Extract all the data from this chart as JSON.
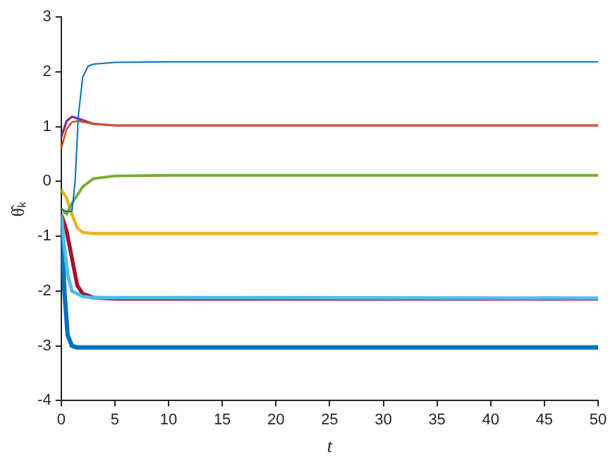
{
  "chart_data": {
    "type": "line",
    "xlabel": "t",
    "ylabel": "θ̂ₖ",
    "xlim": [
      0,
      50
    ],
    "ylim": [
      -4,
      3
    ],
    "xticks": [
      0,
      5,
      10,
      15,
      20,
      25,
      30,
      35,
      40,
      45,
      50
    ],
    "yticks": [
      -4,
      -3,
      -2,
      -1,
      0,
      1,
      2,
      3
    ],
    "grid": false,
    "legend": false,
    "marker": "none",
    "line_style": "solid",
    "series": [
      {
        "color": "#0072bd",
        "x": [
          0,
          0.5,
          1,
          1.3,
          1.6,
          2,
          2.5,
          3,
          5,
          10,
          50
        ],
        "values": [
          -0.5,
          -0.55,
          -0.55,
          0,
          1.2,
          1.9,
          2.1,
          2.14,
          2.17,
          2.18,
          2.18
        ]
      },
      {
        "color": "#d95319",
        "x": [
          0,
          0.5,
          1,
          1.5,
          3,
          5,
          50
        ],
        "values": [
          0.6,
          0.95,
          1.08,
          1.1,
          1.05,
          1.02,
          1.02
        ]
      },
      {
        "color": "#7e2f8e",
        "x": [
          0,
          0.5,
          1,
          1.5,
          3,
          5,
          50
        ],
        "values": [
          0.8,
          1.1,
          1.18,
          1.15,
          1.05,
          1.02,
          1.02
        ]
      },
      {
        "color": "#77ac30",
        "x": [
          0,
          0.5,
          1,
          2,
          3,
          5,
          10,
          50
        ],
        "values": [
          -0.5,
          -0.6,
          -0.4,
          -0.1,
          0.05,
          0.1,
          0.11,
          0.11
        ]
      },
      {
        "color": "#edb120",
        "x": [
          0,
          0.5,
          1,
          1.5,
          2,
          3,
          50
        ],
        "values": [
          -0.15,
          -0.3,
          -0.6,
          -0.85,
          -0.93,
          -0.95,
          -0.95
        ]
      },
      {
        "color": "#4dbeee",
        "x": [
          0,
          0.3,
          0.6,
          1,
          2,
          3,
          50
        ],
        "values": [
          -0.6,
          -1.2,
          -1.7,
          -2,
          -2.1,
          -2.12,
          -2.13
        ]
      },
      {
        "color": "#a2142f",
        "x": [
          0,
          0.5,
          1,
          1.5,
          2,
          3,
          5,
          50
        ],
        "values": [
          -0.6,
          -0.9,
          -1.4,
          -1.9,
          -2.05,
          -2.12,
          -2.14,
          -2.14
        ]
      },
      {
        "color": "#0072bd",
        "x": [
          0,
          0.3,
          0.6,
          1,
          1.5,
          50
        ],
        "values": [
          -0.7,
          -2,
          -2.8,
          -3,
          -3.03,
          -3.03
        ]
      }
    ]
  }
}
